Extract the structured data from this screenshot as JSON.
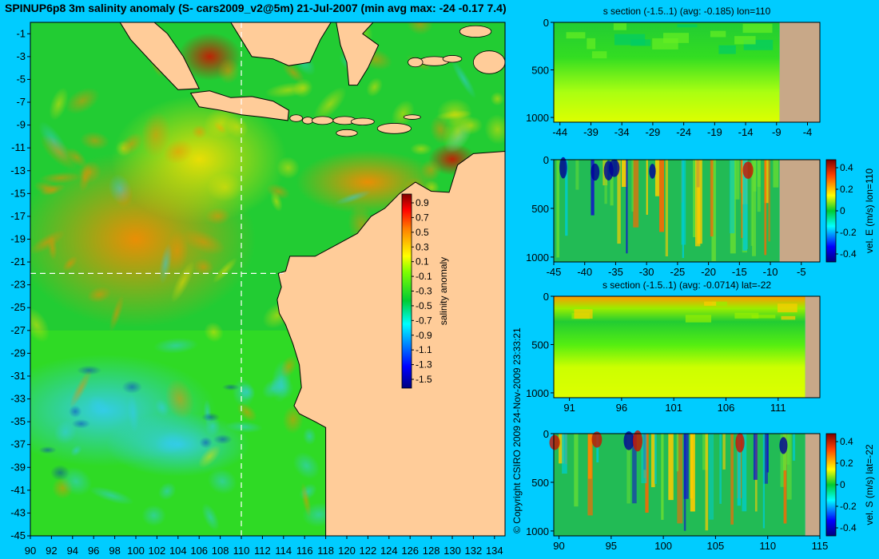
{
  "title": "SPINUP6p8 3m salinity anomaly (S- cars2009_v2@5m) 21-Jul-2007 (min avg max: -24 -0.17 7.4)",
  "copyright": "© Copyright CSIRO 2009   24-Nov-2009 23:33:21",
  "colors": {
    "background": "#00ccff",
    "land": "#ffcc99",
    "section_land": "#c8a888",
    "colormap": [
      "#00007f",
      "#0000ff",
      "#0080ff",
      "#00ffff",
      "#00cc33",
      "#80ff00",
      "#ffff00",
      "#ff8000",
      "#ff0000",
      "#7f0000"
    ]
  },
  "map": {
    "xticks": [
      "90",
      "92",
      "94",
      "96",
      "98",
      "100",
      "102",
      "104",
      "106",
      "108",
      "110",
      "112",
      "114",
      "116",
      "118",
      "120",
      "122",
      "124",
      "126",
      "128",
      "130",
      "132",
      "134"
    ],
    "yticks": [
      "-1",
      "-3",
      "-5",
      "-7",
      "-9",
      "-11",
      "-13",
      "-15",
      "-17",
      "-19",
      "-21",
      "-23",
      "-25",
      "-27",
      "-29",
      "-31",
      "-33",
      "-35",
      "-37",
      "-39",
      "-41",
      "-43",
      "-45"
    ],
    "colorbar": {
      "label": "salinity anomaly",
      "ticks": [
        "0.9",
        "0.7",
        "0.5",
        "0.3",
        "0.1",
        "-0.1",
        "-0.3",
        "-0.5",
        "-0.7",
        "-0.9",
        "-1.1",
        "-1.3",
        "-1.5"
      ]
    }
  },
  "panels": [
    {
      "title": "s section (-1.5..1) (avg: -0.185) lon=110",
      "xticks": [
        "-44",
        "-39",
        "-34",
        "-29",
        "-24",
        "-19",
        "-14",
        "-9",
        "-4"
      ],
      "yticks": [
        "0",
        "500",
        "1000"
      ],
      "colorbar": null
    },
    {
      "title": "",
      "xticks": [
        "-45",
        "-40",
        "-35",
        "-30",
        "-25",
        "-20",
        "-15",
        "-10",
        "-5"
      ],
      "yticks": [
        "0",
        "500",
        "1000"
      ],
      "colorbar": {
        "label": "vel. E (m/s) lon=110",
        "ticks": [
          "0.4",
          "0.2",
          "0",
          "-0.2",
          "-0.4"
        ]
      }
    },
    {
      "title": "s section (-1.5..1) (avg: -0.0714) lat=-22",
      "xticks": [
        "91",
        "96",
        "101",
        "106",
        "111"
      ],
      "yticks": [
        "0",
        "500",
        "1000"
      ],
      "colorbar": null
    },
    {
      "title": "",
      "xticks": [
        "90",
        "95",
        "100",
        "105",
        "110",
        "115"
      ],
      "yticks": [
        "0",
        "500",
        "1000"
      ],
      "colorbar": {
        "label": "vel. S (m/s) lat=-22",
        "ticks": [
          "0.4",
          "0.2",
          "0",
          "-0.2",
          "-0.4"
        ]
      }
    }
  ],
  "chart_data": [
    {
      "type": "heatmap",
      "title": "SPINUP6p8 3m salinity anomaly (S- cars2009_v2@5m) 21-Jul-2007 (min avg max: -24 -0.17 7.4)",
      "xlim": [
        90,
        135
      ],
      "ylim": [
        -45,
        0
      ],
      "clim": [
        -1.5,
        1
      ],
      "colorbar_label": "salinity anomaly",
      "section_lines": {
        "lon": 110,
        "lat": -22
      }
    },
    {
      "type": "heatmap",
      "title": "s section (-1.5..1) (avg: -0.185) lon=110",
      "xlim": [
        -45,
        -2
      ],
      "ylim": [
        1050,
        0
      ]
    },
    {
      "type": "heatmap",
      "title": "",
      "xlim": [
        -45,
        -2
      ],
      "ylim": [
        1050,
        0
      ],
      "clim": [
        -0.4,
        0.4
      ],
      "colorbar_label": "vel. E (m/s) lon=110"
    },
    {
      "type": "heatmap",
      "title": "s section (-1.5..1) (avg: -0.0714) lat=-22",
      "xlim": [
        89.5,
        115
      ],
      "ylim": [
        1050,
        0
      ]
    },
    {
      "type": "heatmap",
      "title": "",
      "xlim": [
        89.5,
        115
      ],
      "ylim": [
        1050,
        0
      ],
      "clim": [
        -0.4,
        0.4
      ],
      "colorbar_label": "vel. S (m/s) lat=-22"
    }
  ]
}
